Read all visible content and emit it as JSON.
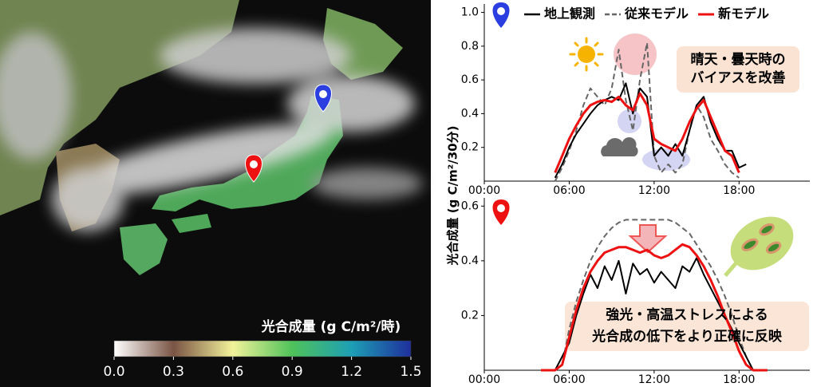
{
  "chart_data": [
    {
      "type": "colorbar",
      "title": "光合成量 (g C/m²/時)",
      "xlim": [
        0,
        1.5
      ],
      "xticks": [
        {
          "value": 0,
          "label": "0.0"
        },
        0.3,
        0.6,
        0.9,
        1.2,
        1.5
      ],
      "colors": [
        "#ffffff",
        "#7a5444",
        "#f2f29a",
        "#4fc25a",
        "#1d9fb5",
        "#1f2f9c"
      ]
    },
    {
      "type": "line",
      "ylabel": "光合成量 (g C/m²/30分)",
      "legend": "top",
      "annotation": [
        "晴天・曇天時の",
        "バイアスを改善"
      ],
      "x": [
        5,
        5.5,
        6,
        6.5,
        7,
        7.5,
        8,
        8.5,
        9,
        9.5,
        10,
        10.5,
        11,
        11.5,
        12,
        12.5,
        13,
        13.5,
        14,
        14.5,
        15,
        15.5,
        16,
        16.5,
        17,
        17.5,
        18,
        18.5
      ],
      "series": [
        {
          "name": "地上観測",
          "color": "#000000",
          "linestyle": "solid",
          "values": [
            0.02,
            0.1,
            0.2,
            0.28,
            0.34,
            0.4,
            0.45,
            0.48,
            0.5,
            0.48,
            0.58,
            0.4,
            0.55,
            0.5,
            0.15,
            0.2,
            0.15,
            0.22,
            0.15,
            0.3,
            0.45,
            0.5,
            0.35,
            0.25,
            0.18,
            0.18,
            0.08,
            0.1
          ]
        },
        {
          "name": "従来モデル",
          "color": "#666666",
          "linestyle": "dashed",
          "values": [
            0.0,
            0.08,
            0.18,
            0.3,
            0.45,
            0.55,
            0.5,
            0.45,
            0.55,
            0.78,
            0.48,
            0.3,
            0.6,
            0.82,
            0.15,
            0.05,
            0.1,
            0.05,
            0.1,
            0.3,
            0.45,
            0.38,
            0.25,
            0.18,
            0.1,
            0.05,
            0.02,
            null
          ]
        },
        {
          "name": "新モデル",
          "color": "#ee1111",
          "linestyle": "solid",
          "values": [
            0.05,
            0.15,
            0.25,
            0.33,
            0.4,
            0.45,
            0.47,
            0.48,
            0.47,
            0.5,
            0.45,
            0.42,
            0.52,
            0.45,
            0.25,
            0.22,
            0.2,
            0.18,
            0.25,
            0.35,
            0.43,
            0.48,
            0.38,
            0.28,
            0.18,
            0.15,
            0.05,
            null
          ]
        }
      ],
      "xlim": [
        0,
        23
      ],
      "xticks": [
        {
          "value": 0,
          "label": "00:00"
        },
        {
          "value": 6,
          "label": "06:00"
        },
        {
          "value": 12,
          "label": "12:00"
        },
        {
          "value": 18,
          "label": "18:00"
        }
      ],
      "ylim": [
        0,
        1.05
      ],
      "yticks": [
        0.2,
        0.4,
        0.6,
        0.8,
        {
          "value": 1.0,
          "label": "1.0"
        }
      ]
    },
    {
      "type": "line",
      "annotation": [
        "強光・高温ストレスによる",
        "光合成の低下をより正確に反映"
      ],
      "x": [
        4,
        4.5,
        5,
        5.5,
        6,
        6.5,
        7,
        7.5,
        8,
        8.5,
        9,
        9.5,
        10,
        10.5,
        11,
        11.5,
        12,
        12.5,
        13,
        13.5,
        14,
        14.5,
        15,
        15.5,
        16,
        16.5,
        17,
        17.5,
        18,
        18.5,
        19,
        19.5,
        20
      ],
      "series": [
        {
          "color": "#000000",
          "linestyle": "solid",
          "values": [
            0,
            0,
            0,
            0.05,
            0.1,
            0.2,
            0.28,
            0.35,
            0.3,
            0.38,
            0.33,
            0.4,
            0.28,
            0.39,
            0.35,
            0.37,
            0.32,
            0.36,
            0.33,
            0.3,
            0.38,
            0.36,
            0.41,
            0.35,
            0.3,
            0.25,
            0.2,
            0.15,
            0.1,
            0.05,
            0,
            0,
            0
          ]
        },
        {
          "color": "#666666",
          "linestyle": "dashed",
          "values": [
            0,
            0,
            0,
            0.02,
            0.15,
            0.25,
            0.33,
            0.4,
            0.45,
            0.49,
            0.52,
            0.54,
            0.55,
            0.55,
            0.55,
            0.55,
            0.55,
            0.55,
            0.55,
            0.54,
            0.52,
            0.5,
            0.46,
            0.42,
            0.38,
            0.33,
            0.27,
            0.2,
            0.12,
            0.05,
            0,
            0,
            0
          ]
        },
        {
          "color": "#ee1111",
          "linestyle": "solid",
          "values": [
            0,
            0,
            0,
            0.02,
            0.12,
            0.22,
            0.3,
            0.36,
            0.4,
            0.43,
            0.44,
            0.45,
            0.45,
            0.44,
            0.43,
            0.44,
            0.42,
            0.41,
            0.42,
            0.44,
            0.46,
            0.45,
            0.42,
            0.38,
            0.33,
            0.27,
            0.2,
            0.14,
            0.07,
            0.02,
            0,
            0,
            0
          ]
        }
      ],
      "xlim": [
        0,
        23
      ],
      "xticks": [
        {
          "value": 0,
          "label": "00:00"
        },
        {
          "value": 6,
          "label": "06:00"
        },
        {
          "value": 12,
          "label": "12:00"
        },
        {
          "value": 18,
          "label": "18:00"
        }
      ],
      "ylim": [
        0,
        0.63
      ],
      "yticks": [
        0.2,
        0.4,
        0.6
      ]
    }
  ]
}
